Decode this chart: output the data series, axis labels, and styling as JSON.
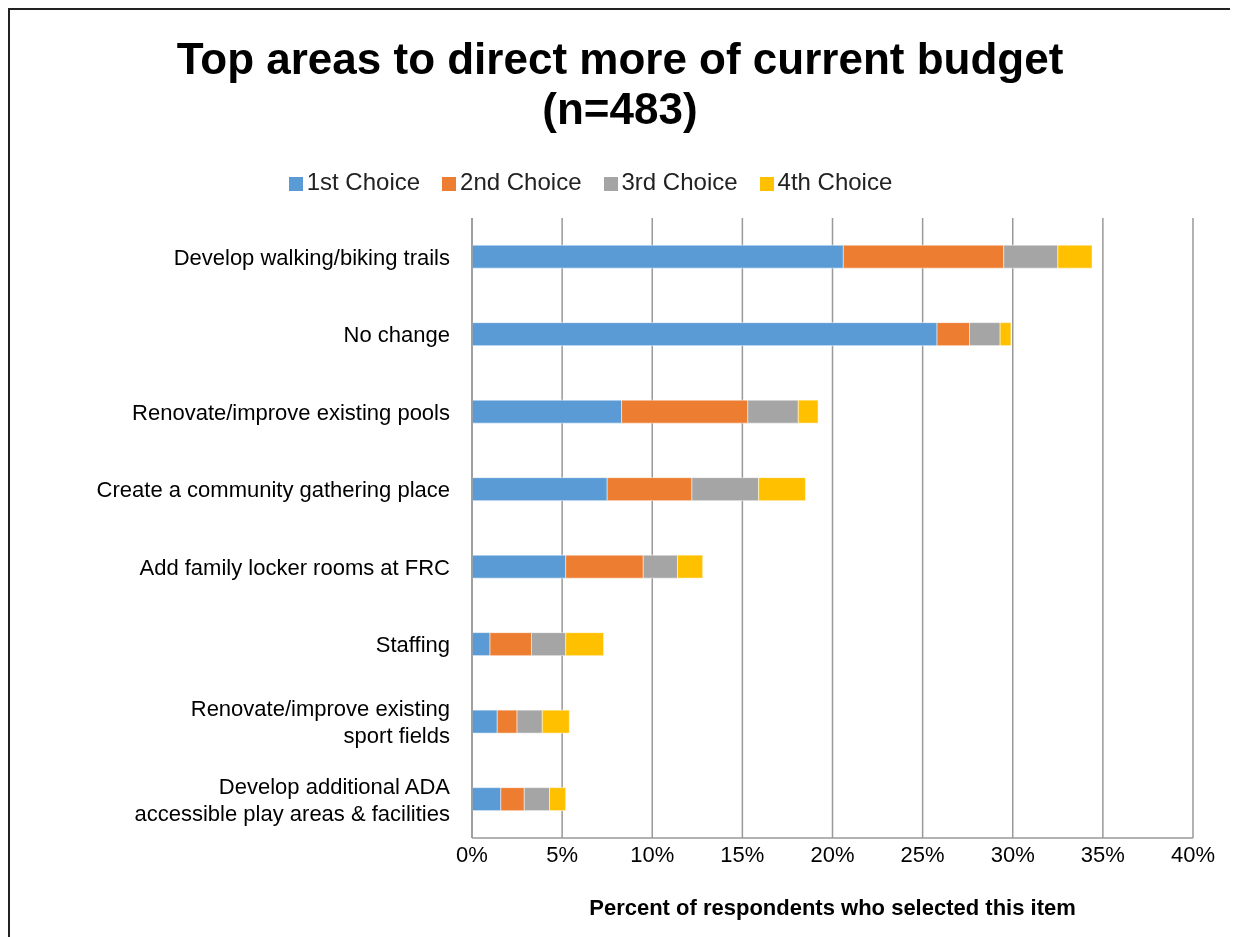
{
  "chart_data": {
    "type": "bar",
    "orientation": "horizontal",
    "stacked": true,
    "title": "Top areas to direct more of current budget (n=483)",
    "xlabel": "Percent of respondents who selected this item",
    "categories": [
      "Develop walking/biking trails",
      "No change",
      "Renovate/improve existing pools",
      "Create a community gathering place",
      "Add family locker rooms at FRC",
      "Staffing",
      "Renovate/improve existing sport fields",
      "Develop additional ADA accessible play areas & facilities"
    ],
    "series": [
      {
        "name": "1st Choice",
        "color": "#5b9bd5",
        "values": [
          20.6,
          25.8,
          8.3,
          7.5,
          5.2,
          1.0,
          1.4,
          1.6
        ]
      },
      {
        "name": "2nd Choice",
        "color": "#ed7d31",
        "values": [
          8.9,
          1.8,
          7.0,
          4.7,
          4.3,
          2.3,
          1.1,
          1.3
        ]
      },
      {
        "name": "3rd Choice",
        "color": "#a5a5a5",
        "values": [
          3.0,
          1.7,
          2.8,
          3.7,
          1.9,
          1.9,
          1.4,
          1.4
        ]
      },
      {
        "name": "4th Choice",
        "color": "#ffc000",
        "values": [
          1.9,
          0.6,
          1.1,
          2.6,
          1.4,
          2.1,
          1.5,
          0.9
        ]
      }
    ],
    "xlim": [
      0,
      40
    ],
    "xticks": [
      {
        "value": 0,
        "label": "0%"
      },
      {
        "value": 5,
        "label": "5%"
      },
      {
        "value": 10,
        "label": "10%"
      },
      {
        "value": 15,
        "label": "15%"
      },
      {
        "value": 20,
        "label": "20%"
      },
      {
        "value": 25,
        "label": "25%"
      },
      {
        "value": 30,
        "label": "30%"
      },
      {
        "value": 35,
        "label": "35%"
      },
      {
        "value": 40,
        "label": "40%"
      }
    ],
    "grid": "x",
    "legend": "top"
  }
}
